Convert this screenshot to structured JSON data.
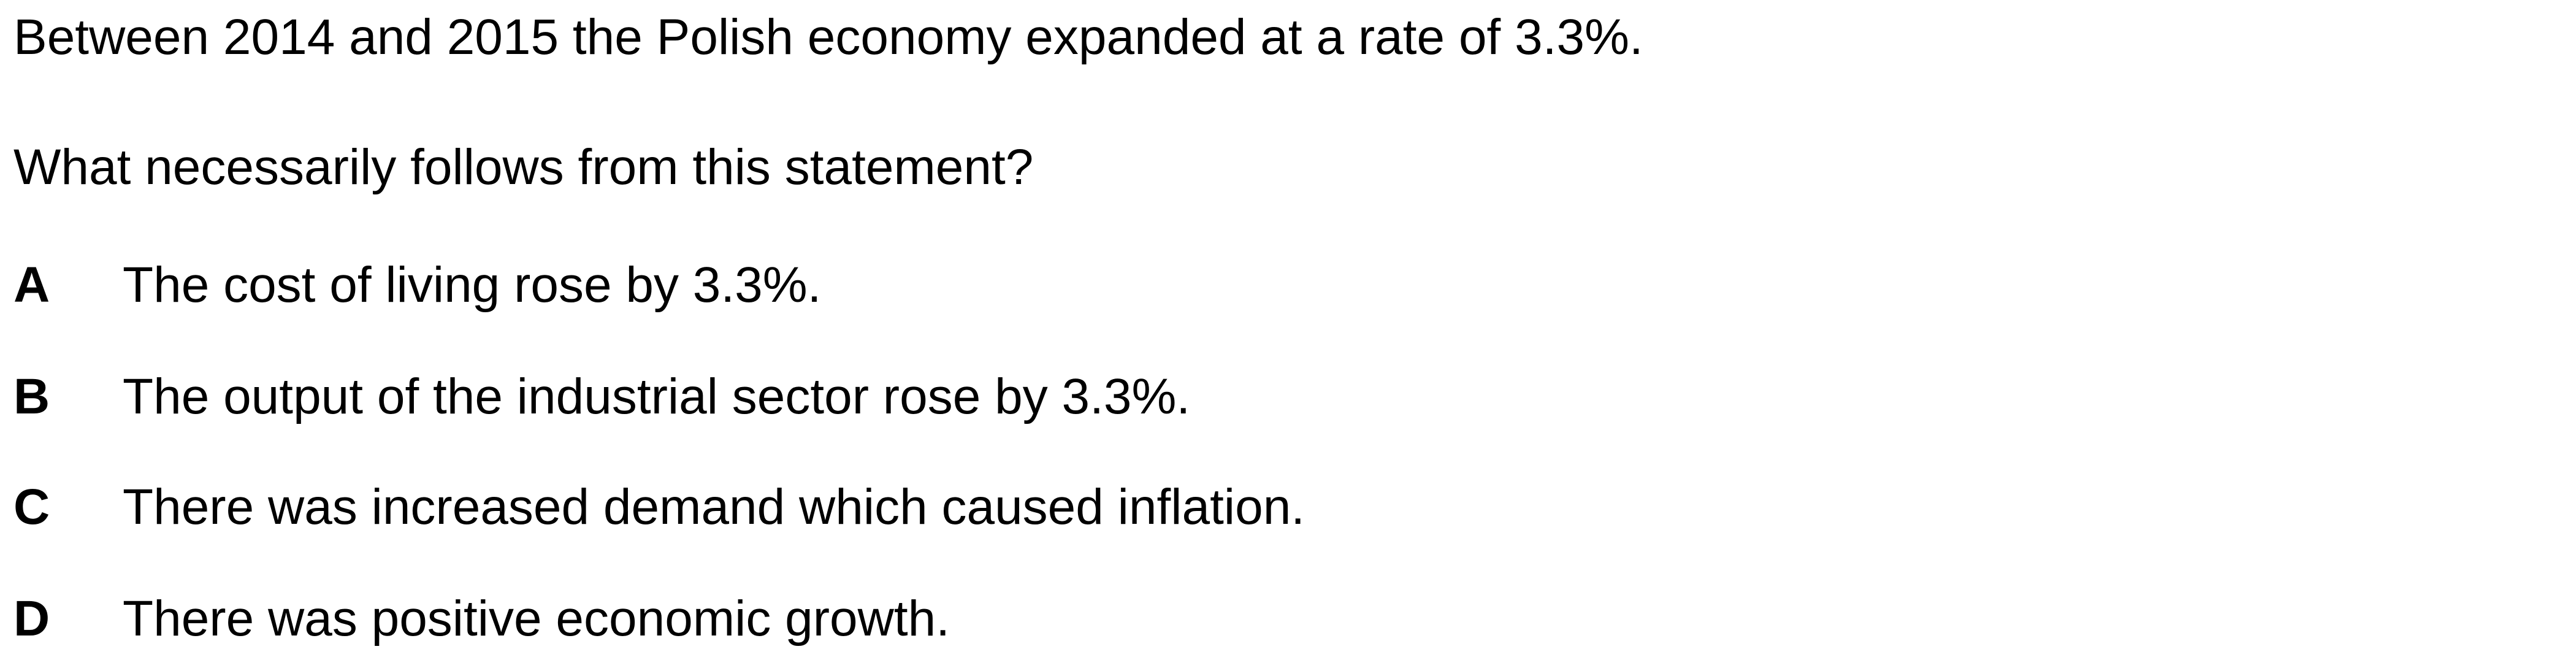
{
  "statement": "Between 2014 and 2015 the Polish economy expanded at a rate of 3.3%.",
  "question": "What necessarily follows from this statement?",
  "options": [
    {
      "letter": "A",
      "text": "The cost of living rose by 3.3%."
    },
    {
      "letter": "B",
      "text": "The output of the industrial sector rose by 3.3%."
    },
    {
      "letter": "C",
      "text": "There was increased demand which caused inflation."
    },
    {
      "letter": "D",
      "text": "There was positive economic growth."
    }
  ]
}
